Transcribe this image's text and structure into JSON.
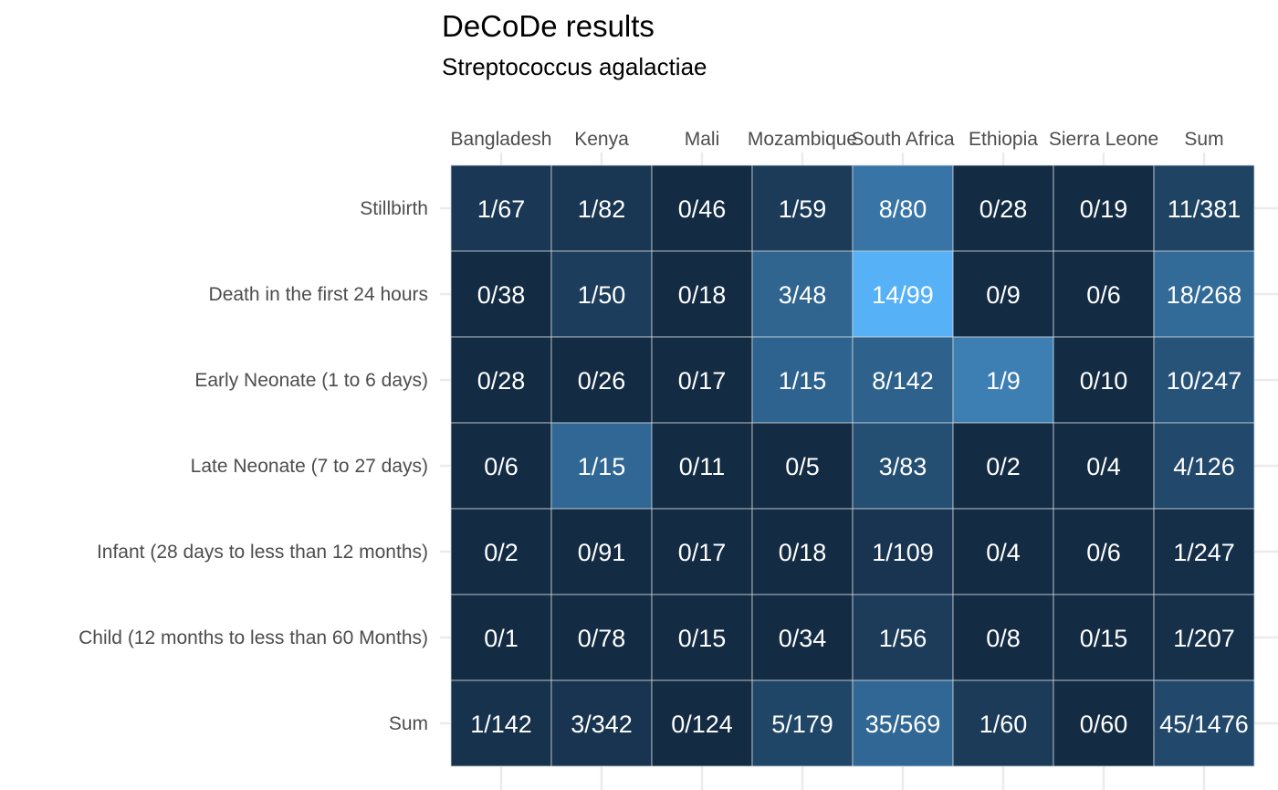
{
  "chart_data": {
    "type": "heatmap",
    "title": "DeCoDe results",
    "subtitle": "Streptococcus agalactiae",
    "x_position": "top",
    "grid": true,
    "legend": "none",
    "colors": {
      "low": "#132b43",
      "high": "#56b1f7",
      "cell_border": "#d0d7de",
      "grid": "#ebebeb"
    },
    "columns": [
      "Bangladesh",
      "Kenya",
      "Mali",
      "Mozambique",
      "South Africa",
      "Ethiopia",
      "Sierra Leone",
      "Sum"
    ],
    "rows": [
      "Stillbirth",
      "Death in the first 24 hours",
      "Early Neonate (1 to 6 days)",
      "Late Neonate (7 to 27 days)",
      "Infant (28 days to less than 12 months)",
      "Child (12 months to less than 60 Months)",
      "Sum"
    ],
    "labels": [
      [
        "1/67",
        "1/82",
        "0/46",
        "1/59",
        "8/80",
        "0/28",
        "0/19",
        "11/381"
      ],
      [
        "0/38",
        "1/50",
        "0/18",
        "3/48",
        "14/99",
        "0/9",
        "0/6",
        "18/268"
      ],
      [
        "0/28",
        "0/26",
        "0/17",
        "1/15",
        "8/142",
        "1/9",
        "0/10",
        "10/247"
      ],
      [
        "0/6",
        "1/15",
        "0/11",
        "0/5",
        "3/83",
        "0/2",
        "0/4",
        "4/126"
      ],
      [
        "0/2",
        "0/91",
        "0/17",
        "0/18",
        "1/109",
        "0/4",
        "0/6",
        "1/247"
      ],
      [
        "0/1",
        "0/78",
        "0/15",
        "0/34",
        "1/56",
        "0/8",
        "0/15",
        "1/207"
      ],
      [
        "1/142",
        "3/342",
        "0/124",
        "5/179",
        "35/569",
        "1/60",
        "0/60",
        "45/1476"
      ]
    ],
    "fill_fraction": [
      [
        0.1,
        0.09,
        0.0,
        0.12,
        0.55,
        0.0,
        0.0,
        0.18
      ],
      [
        0.0,
        0.14,
        0.0,
        0.43,
        1.0,
        0.0,
        0.0,
        0.47
      ],
      [
        0.0,
        0.0,
        0.0,
        0.42,
        0.4,
        0.62,
        0.0,
        0.3
      ],
      [
        0.0,
        0.45,
        0.0,
        0.0,
        0.26,
        0.0,
        0.0,
        0.22
      ],
      [
        0.0,
        0.0,
        0.0,
        0.0,
        0.07,
        0.0,
        0.0,
        0.03
      ],
      [
        0.0,
        0.0,
        0.0,
        0.0,
        0.13,
        0.0,
        0.0,
        0.04
      ],
      [
        0.05,
        0.07,
        0.0,
        0.2,
        0.45,
        0.12,
        0.0,
        0.22
      ]
    ]
  }
}
